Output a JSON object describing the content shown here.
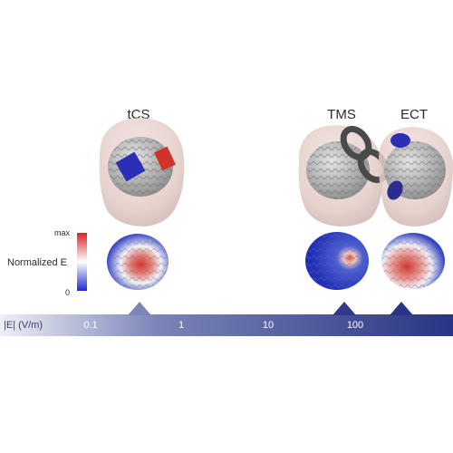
{
  "methods": {
    "tcs": "tCS",
    "tms": "TMS",
    "ect": "ECT"
  },
  "legend": {
    "title": "Normalized E",
    "max": "max",
    "min": "0"
  },
  "axis": {
    "label": "|E| (V/m)",
    "ticks": [
      "0.1",
      "1",
      "10",
      "100"
    ]
  },
  "colors": {
    "bar_start": "#e8eaf4",
    "bar_end": "#283484",
    "electrode_red": "#d0332c",
    "electrode_blue": "#2b2fb5",
    "coil": "#4a4a4a",
    "brain_high": "#d9342b",
    "brain_low": "#2237c4"
  }
}
